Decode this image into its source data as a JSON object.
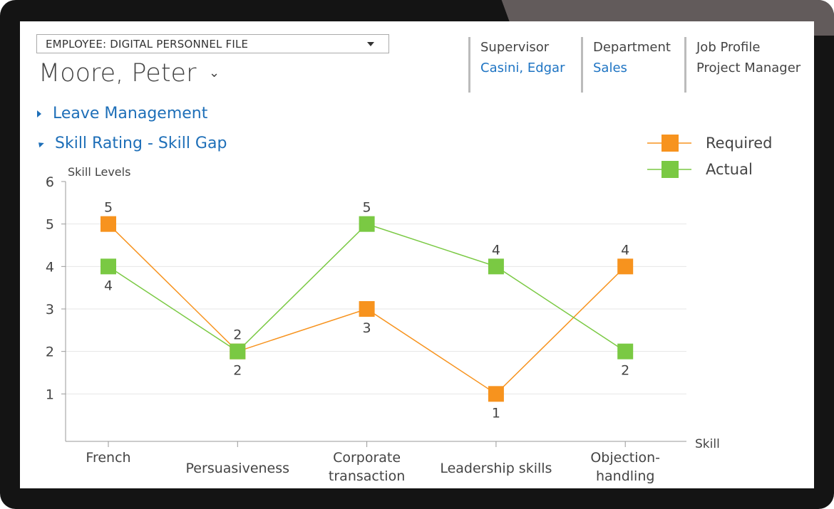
{
  "header": {
    "form_select": "EMPLOYEE: DIGITAL PERSONNEL FILE",
    "employee_name": "Moore, Peter",
    "supervisor": {
      "label": "Supervisor",
      "value": "Casini, Edgar"
    },
    "department": {
      "label": "Department",
      "value": "Sales"
    },
    "job_profile": {
      "label": "Job Profile",
      "value": "Project Manager"
    }
  },
  "sections": {
    "leave": "Leave Management",
    "skill": "Skill Rating - Skill Gap"
  },
  "colors": {
    "required": "#f7931e",
    "actual": "#7ac943",
    "link": "#1e74c3"
  },
  "chart_data": {
    "type": "line",
    "ylabel": "Skill Levels",
    "xlabel": "Skill",
    "ylim": [
      0,
      6
    ],
    "yticks": [
      1,
      2,
      3,
      4,
      5,
      6
    ],
    "categories": [
      [
        "French"
      ],
      [
        "Persuasiveness"
      ],
      [
        "Corporate",
        "transaction"
      ],
      [
        "Leadership skills"
      ],
      [
        "Objection-",
        "handling"
      ]
    ],
    "series": [
      {
        "name": "Required",
        "color": "#f7931e",
        "values": [
          5,
          2,
          3,
          1,
          4
        ]
      },
      {
        "name": "Actual",
        "color": "#7ac943",
        "values": [
          4,
          2,
          5,
          4,
          2
        ]
      }
    ],
    "legend": "top-right",
    "grid": true
  }
}
